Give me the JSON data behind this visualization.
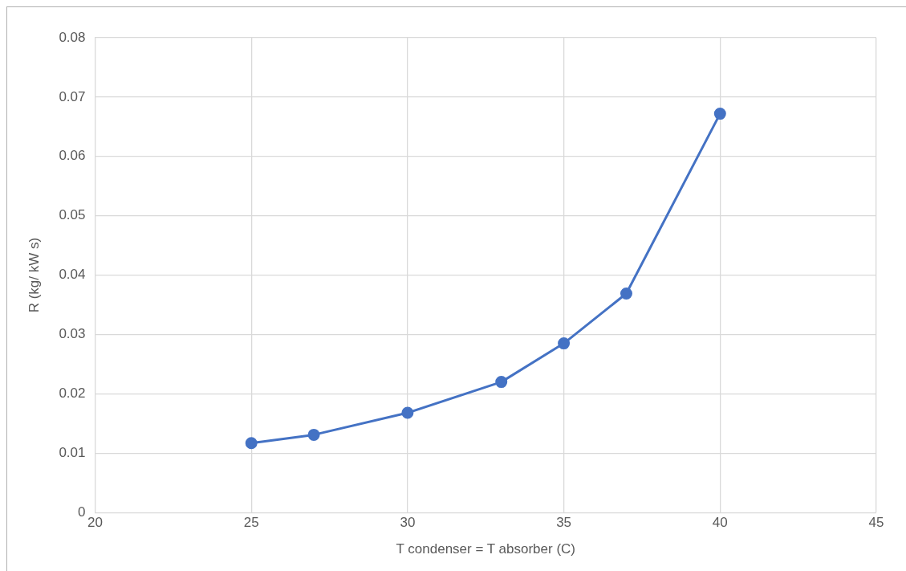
{
  "chart_data": {
    "type": "line",
    "xlabel": "T condenser = T absorber (C)",
    "ylabel": "R (kg/ kW s)",
    "x": [
      25,
      27,
      30,
      33,
      35,
      37,
      40
    ],
    "series": [
      {
        "color": "#4472c4",
        "values": [
          0.0117,
          0.0131,
          0.0168,
          0.022,
          0.0285,
          0.0369,
          0.0672
        ]
      }
    ],
    "xlim": [
      20,
      45
    ],
    "xticks": [
      20,
      25,
      30,
      35,
      40,
      45
    ],
    "ylim": [
      0,
      0.08
    ],
    "yticks": [
      0,
      0.01,
      0.02,
      0.03,
      0.04,
      0.05,
      0.06,
      0.07,
      0.08
    ],
    "grid": true,
    "legend": false,
    "marker": "circle",
    "line_style": "solid"
  }
}
